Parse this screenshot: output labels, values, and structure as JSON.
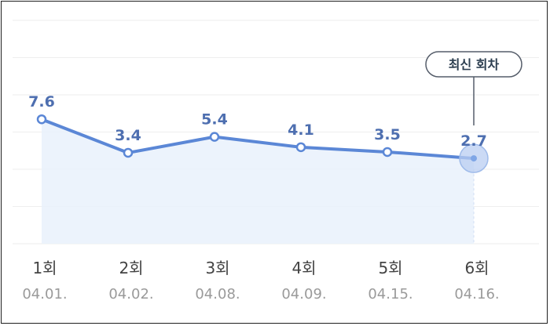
{
  "chart_data": {
    "type": "area",
    "categories": [
      {
        "round": "1회",
        "date": "04.01."
      },
      {
        "round": "2회",
        "date": "04.02."
      },
      {
        "round": "3회",
        "date": "04.08."
      },
      {
        "round": "4회",
        "date": "04.09."
      },
      {
        "round": "5회",
        "date": "04.15."
      },
      {
        "round": "6회",
        "date": "04.16."
      }
    ],
    "values": [
      7.6,
      3.4,
      5.4,
      4.1,
      3.5,
      2.7
    ],
    "value_labels": [
      "7.6",
      "3.4",
      "5.4",
      "4.1",
      "3.5",
      "2.7"
    ],
    "ylim": [
      -8,
      20
    ],
    "grid": true,
    "highlight_index": 5,
    "highlight_label": "최신 회차",
    "colors": {
      "line": "#5b87d6",
      "fill": "#e9f1fc",
      "grid": "#eeeeee",
      "value_label": "#4e6fb0",
      "highlight": "#7fa6e6"
    }
  }
}
